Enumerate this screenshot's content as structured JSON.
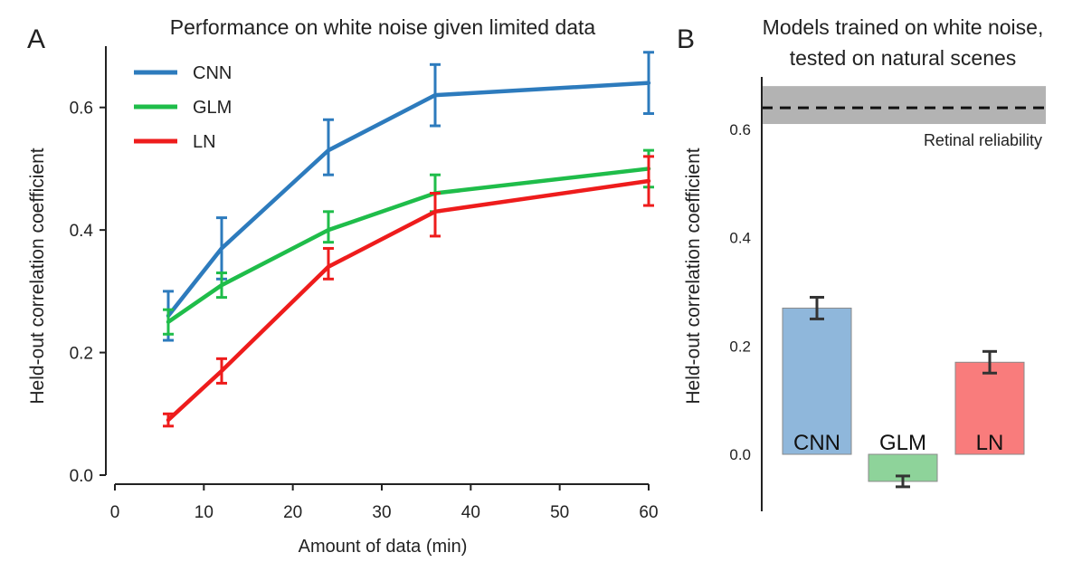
{
  "panels": {
    "a_letter": "A",
    "b_letter": "B"
  },
  "chart_data": [
    {
      "type": "line",
      "title": "Performance on white noise given limited data",
      "xlabel": "Amount of data (min)",
      "ylabel": "Held-out correlation coefficient",
      "xlim": [
        0,
        60
      ],
      "ylim": [
        0,
        0.7
      ],
      "xticks": [
        0,
        10,
        20,
        30,
        40,
        50,
        60
      ],
      "xtick_labels": [
        "0",
        "10",
        "20",
        "30",
        "40",
        "50",
        "60"
      ],
      "yticks": [
        0,
        0.2,
        0.4,
        0.6
      ],
      "ytick_labels": [
        "0.0",
        "0.2",
        "0.4",
        "0.6"
      ],
      "x": [
        6,
        12,
        24,
        36,
        60
      ],
      "legend_position": "top-left",
      "grid": false,
      "series": [
        {
          "name": "CNN",
          "color": "#2d7bbd",
          "values": [
            0.26,
            0.37,
            0.53,
            0.62,
            0.64
          ],
          "err_low": [
            0.22,
            0.32,
            0.49,
            0.57,
            0.59
          ],
          "err_high": [
            0.3,
            0.42,
            0.58,
            0.67,
            0.69
          ]
        },
        {
          "name": "GLM",
          "color": "#1fbd4a",
          "values": [
            0.25,
            0.31,
            0.4,
            0.46,
            0.5
          ],
          "err_low": [
            0.23,
            0.29,
            0.38,
            0.43,
            0.47
          ],
          "err_high": [
            0.27,
            0.33,
            0.43,
            0.49,
            0.53
          ]
        },
        {
          "name": "LN",
          "color": "#ee1c1c",
          "values": [
            0.09,
            0.17,
            0.34,
            0.43,
            0.48
          ],
          "err_low": [
            0.08,
            0.15,
            0.32,
            0.39,
            0.44
          ],
          "err_high": [
            0.1,
            0.19,
            0.37,
            0.46,
            0.52
          ]
        }
      ]
    },
    {
      "type": "bar",
      "title_lines": [
        "Models trained on white noise,",
        "tested on natural scenes"
      ],
      "ylabel": "Held-out correlation coefficient",
      "ylim": [
        -0.1,
        0.7
      ],
      "yticks": [
        0,
        0.2,
        0.4,
        0.6
      ],
      "ytick_labels": [
        "0.0",
        "0.2",
        "0.4",
        "0.6"
      ],
      "categories": [
        "CNN",
        "GLM",
        "LN"
      ],
      "values": [
        0.27,
        -0.05,
        0.17
      ],
      "err_low": [
        0.25,
        -0.06,
        0.15
      ],
      "err_high": [
        0.29,
        -0.04,
        0.19
      ],
      "colors": [
        "#8fb7db",
        "#8ed39a",
        "#f97c7c"
      ],
      "reference": {
        "label": "Retinal reliability",
        "value": 0.64,
        "band": [
          0.61,
          0.68
        ],
        "band_color": "#b3b3b3",
        "line_style": "dashed"
      }
    }
  ]
}
